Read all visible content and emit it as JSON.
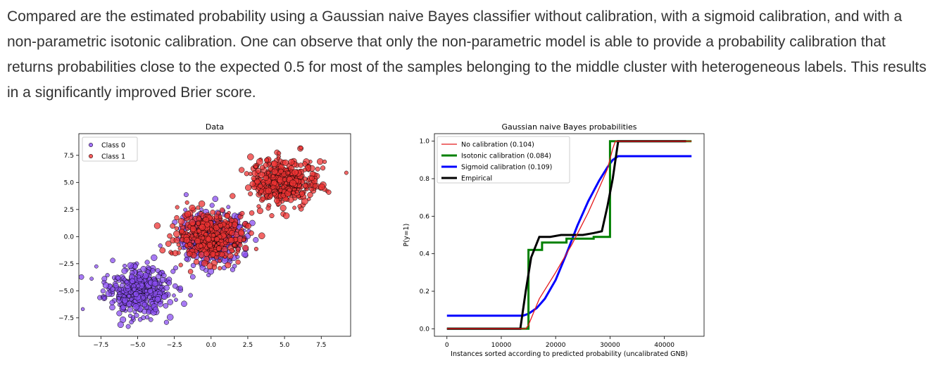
{
  "paragraph": "Compared are the estimated probability using a Gaussian naive Bayes classifier without calibration, with a sigmoid calibration, and with a non-parametric isotonic calibration. One can observe that only the non-parametric model is able to provide a probability calibration that returns probabilities close to the expected 0.5 for most of the samples belonging to the middle cluster with heterogeneous labels. This results in a significantly improved Brier score.",
  "colors": {
    "class0": "#8a4df0",
    "class1": "#ee3333",
    "no_calibration": "#e41a1c",
    "isotonic": "#008000",
    "sigmoid": "#0000ff",
    "empirical": "#000000"
  },
  "chart_data": [
    {
      "type": "scatter",
      "title": "Data",
      "xlabel": "",
      "ylabel": "",
      "xlim": [
        -9,
        9.5
      ],
      "ylim": [
        -9.2,
        9.5
      ],
      "x_ticks": [
        "−7.5",
        "−5.0",
        "−2.5",
        "0.0",
        "2.5",
        "5.0",
        "7.5"
      ],
      "y_ticks": [
        "−7.5",
        "−5.0",
        "−2.5",
        "0.0",
        "2.5",
        "5.0",
        "7.5"
      ],
      "legend_position": "top-left",
      "series": [
        {
          "name": "Class 0",
          "clusters": [
            {
              "center": [
                -5,
                -5
              ],
              "spread": 1.1
            },
            {
              "center": [
                0,
                0
              ],
              "spread": 1.1
            }
          ]
        },
        {
          "name": "Class 1",
          "clusters": [
            {
              "center": [
                0,
                0
              ],
              "spread": 1.1
            },
            {
              "center": [
                5,
                5
              ],
              "spread": 1.1
            }
          ]
        }
      ]
    },
    {
      "type": "line",
      "title": "Gaussian naive Bayes probabilities",
      "xlabel": "Instances sorted according to predicted probability (uncalibrated GNB)",
      "ylabel": "P(y=1)",
      "xlim": [
        -2300,
        47300
      ],
      "ylim": [
        -0.04,
        1.04
      ],
      "x_ticks": [
        "0",
        "10000",
        "20000",
        "30000",
        "40000"
      ],
      "y_ticks": [
        "0.0",
        "0.2",
        "0.4",
        "0.6",
        "0.8",
        "1.0"
      ],
      "legend_position": "top-left",
      "series": [
        {
          "name": "No calibration (0.104)",
          "x": [
            0,
            14500,
            15000,
            16000,
            17000,
            20000,
            23000,
            26000,
            28000,
            29500,
            30500,
            31000,
            45000
          ],
          "y": [
            0,
            0,
            0.02,
            0.09,
            0.16,
            0.3,
            0.45,
            0.62,
            0.75,
            0.85,
            0.96,
            1,
            1
          ]
        },
        {
          "name": "Isotonic calibration (0.084)",
          "x": [
            0,
            15000,
            15000,
            16000,
            16000,
            17500,
            17500,
            22000,
            22000,
            27000,
            27000,
            29500,
            29500,
            30000,
            30000,
            45000
          ],
          "y": [
            0,
            0,
            0.42,
            0.42,
            0.42,
            0.42,
            0.46,
            0.46,
            0.48,
            0.48,
            0.49,
            0.49,
            0.49,
            0.49,
            1,
            1
          ]
        },
        {
          "name": "Sigmoid calibration (0.109)",
          "x": [
            0,
            14000,
            15000,
            16500,
            18000,
            20000,
            22000,
            24000,
            26000,
            28000,
            29500,
            30500,
            31500,
            45000
          ],
          "y": [
            0.07,
            0.07,
            0.08,
            0.11,
            0.16,
            0.26,
            0.4,
            0.55,
            0.68,
            0.79,
            0.86,
            0.9,
            0.92,
            0.92
          ]
        },
        {
          "name": "Empirical",
          "x": [
            0,
            13500,
            14500,
            15500,
            17000,
            19000,
            21000,
            23000,
            25000,
            27000,
            28500,
            29500,
            30500,
            31500,
            44000
          ],
          "y": [
            0,
            0,
            0.2,
            0.38,
            0.49,
            0.49,
            0.5,
            0.5,
            0.5,
            0.51,
            0.52,
            0.65,
            0.8,
            1,
            1
          ]
        }
      ]
    }
  ]
}
